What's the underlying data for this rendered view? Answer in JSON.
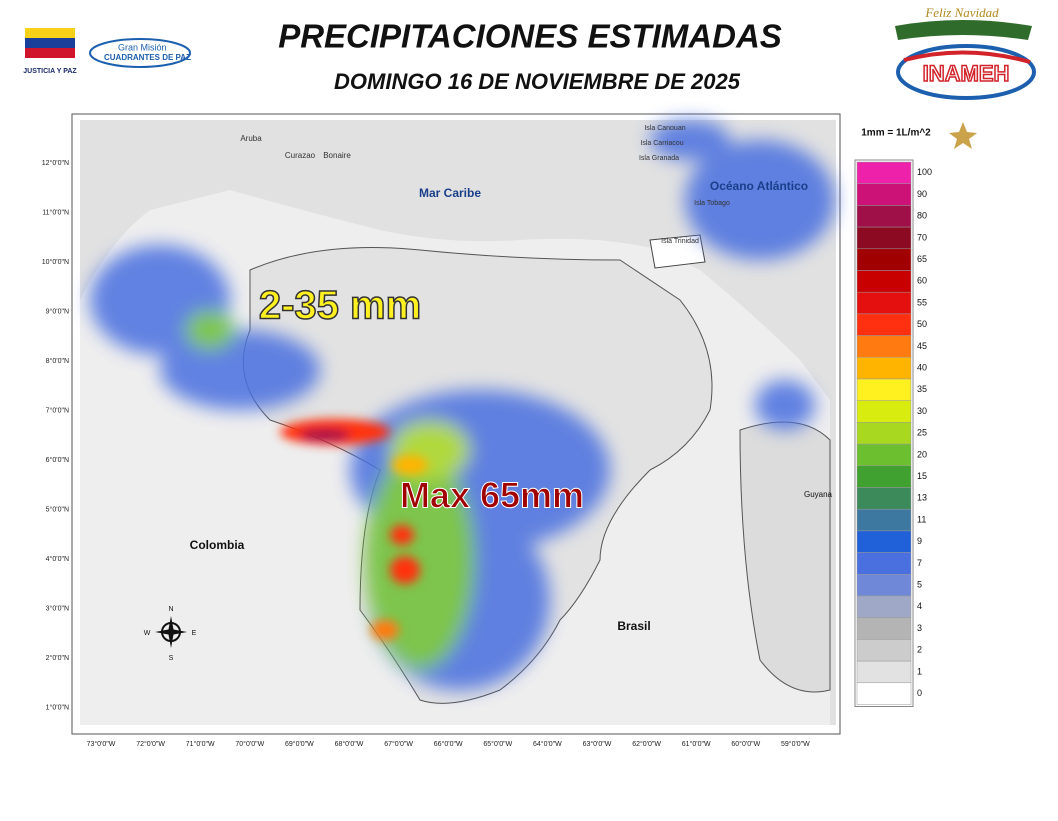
{
  "header": {
    "title": "PRECIPITACIONES ESTIMADAS",
    "subtitle": "DOMINGO 16 DE NOVIEMBRE  DE 2025"
  },
  "logos": {
    "left_caption": "JUSTICIA Y PAZ",
    "mision_top": "Gran Misión",
    "mision_bottom": "CUADRANTES DE PAZ",
    "holiday": "Feliz Navidad",
    "inameh": "INAMEH"
  },
  "map": {
    "unit_note": "1mm = 1L/m^2",
    "places": [
      "Mar Caribe",
      "Océano Atlántico",
      "Colombia",
      "Brasil",
      "Guyana",
      "Aruba",
      "Curazao",
      "Bonaire",
      "Isla Canouan",
      "Isla Carriacou",
      "Isla Granada",
      "Isla Tobago",
      "Isla Trinidad"
    ],
    "annotations": [
      "2-35 mm",
      "Max 65mm"
    ],
    "compass": [
      "N",
      "S",
      "E",
      "W"
    ],
    "lat_ticks": [
      "12°0'0\"N",
      "11°0'0\"N",
      "10°0'0\"N",
      "9°0'0\"N",
      "8°0'0\"N",
      "7°0'0\"N",
      "6°0'0\"N",
      "5°0'0\"N",
      "4°0'0\"N",
      "3°0'0\"N",
      "2°0'0\"N",
      "1°0'0\"N"
    ],
    "lon_ticks": [
      "73°0'0\"W",
      "72°0'0\"W",
      "71°0'0\"W",
      "70°0'0\"W",
      "69°0'0\"W",
      "68°0'0\"W",
      "67°0'0\"W",
      "66°0'0\"W",
      "65°0'0\"W",
      "64°0'0\"W",
      "63°0'0\"W",
      "62°0'0\"W",
      "61°0'0\"W",
      "60°0'0\"W",
      "59°0'0\"W"
    ]
  },
  "legend": [
    {
      "value": 100,
      "color": "#ee22aa"
    },
    {
      "value": 90,
      "color": "#cc1177"
    },
    {
      "value": 80,
      "color": "#a01048"
    },
    {
      "value": 70,
      "color": "#8c0a22"
    },
    {
      "value": 65,
      "color": "#a00000"
    },
    {
      "value": 60,
      "color": "#c80000"
    },
    {
      "value": 55,
      "color": "#e41010"
    },
    {
      "value": 50,
      "color": "#ff3010"
    },
    {
      "value": 45,
      "color": "#ff7a10"
    },
    {
      "value": 40,
      "color": "#ffb400"
    },
    {
      "value": 35,
      "color": "#fff020"
    },
    {
      "value": 30,
      "color": "#d8ec10"
    },
    {
      "value": 25,
      "color": "#a8d820"
    },
    {
      "value": 20,
      "color": "#6cc030"
    },
    {
      "value": 15,
      "color": "#40a030"
    },
    {
      "value": 13,
      "color": "#3c8a5a"
    },
    {
      "value": 11,
      "color": "#3c78a0"
    },
    {
      "value": 9,
      "color": "#2060d8"
    },
    {
      "value": 7,
      "color": "#4a70e0"
    },
    {
      "value": 5,
      "color": "#7088d8"
    },
    {
      "value": 4,
      "color": "#a0a8c8"
    },
    {
      "value": 3,
      "color": "#b4b4b4"
    },
    {
      "value": 2,
      "color": "#cccccc"
    },
    {
      "value": 1,
      "color": "#e2e2e2"
    },
    {
      "value": 0,
      "color": "#ffffff"
    }
  ]
}
